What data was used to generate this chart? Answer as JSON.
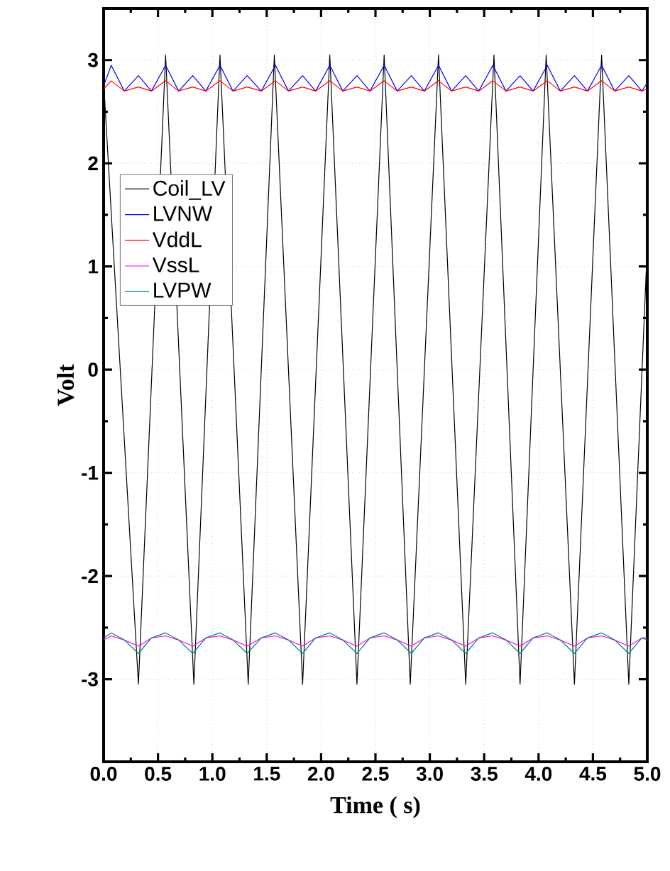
{
  "chart_data": {
    "type": "line",
    "xlabel": "Time (  s)",
    "ylabel": "Volt",
    "xlim": [
      0,
      5
    ],
    "ylim": [
      -3.8,
      3.5
    ],
    "xticks": [
      {
        "value": 0,
        "label": "0.0"
      },
      {
        "value": 0.5,
        "label": "0.5"
      },
      {
        "value": 1,
        "label": "1.0"
      },
      {
        "value": 1.5,
        "label": "1.5"
      },
      {
        "value": 2,
        "label": "2.0"
      },
      {
        "value": 2.5,
        "label": "2.5"
      },
      {
        "value": 3,
        "label": "3.0"
      },
      {
        "value": 3.5,
        "label": "3.5"
      },
      {
        "value": 4,
        "label": "4.0"
      },
      {
        "value": 4.5,
        "label": "4.5"
      },
      {
        "value": 5,
        "label": "5.0"
      }
    ],
    "yticks": [
      -3,
      -2,
      -1,
      0,
      1,
      2,
      3
    ],
    "grid": true,
    "legend": "top left",
    "series": [
      {
        "name": "Coil_LV",
        "color": "#000000",
        "x": [
          0,
          0.32,
          0.57,
          0.83,
          1.07,
          1.33,
          1.57,
          1.83,
          2.08,
          2.33,
          2.58,
          2.82,
          3.08,
          3.33,
          3.59,
          3.83,
          4.07,
          4.33,
          4.58,
          4.83,
          5.0
        ],
        "values": [
          2.8,
          -3.05,
          3.05,
          -3.05,
          3.05,
          -3.05,
          3.05,
          -3.05,
          3.05,
          -3.05,
          3.05,
          -3.05,
          3.05,
          -3.05,
          3.05,
          -3.05,
          3.05,
          -3.05,
          3.05,
          -3.05,
          1.2
        ]
      },
      {
        "name": "LVNW",
        "color": "#0000ff",
        "x": [
          0,
          0.07,
          0.19,
          0.32,
          0.44,
          0.57,
          0.69,
          0.82,
          0.94,
          1.07,
          1.19,
          1.32,
          1.45,
          1.58,
          1.7,
          1.83,
          1.95,
          2.08,
          2.2,
          2.33,
          2.45,
          2.58,
          2.7,
          2.83,
          2.95,
          3.08,
          3.2,
          3.33,
          3.45,
          3.58,
          3.7,
          3.83,
          3.95,
          4.08,
          4.2,
          4.33,
          4.45,
          4.58,
          4.7,
          4.83,
          4.95,
          5.0
        ],
        "values": [
          2.75,
          2.95,
          2.7,
          2.85,
          2.7,
          2.95,
          2.7,
          2.85,
          2.7,
          2.95,
          2.7,
          2.85,
          2.7,
          2.95,
          2.7,
          2.85,
          2.7,
          2.95,
          2.7,
          2.85,
          2.7,
          2.95,
          2.7,
          2.85,
          2.7,
          2.95,
          2.7,
          2.85,
          2.7,
          2.95,
          2.7,
          2.85,
          2.7,
          2.95,
          2.7,
          2.85,
          2.7,
          2.95,
          2.7,
          2.85,
          2.7,
          2.78
        ]
      },
      {
        "name": "VddL",
        "color": "#ff0000",
        "x": [
          0,
          0.07,
          0.19,
          0.32,
          0.44,
          0.57,
          0.69,
          0.82,
          0.94,
          1.07,
          1.19,
          1.32,
          1.45,
          1.58,
          1.7,
          1.83,
          1.95,
          2.08,
          2.2,
          2.33,
          2.45,
          2.58,
          2.7,
          2.83,
          2.95,
          3.08,
          3.2,
          3.33,
          3.45,
          3.58,
          3.7,
          3.83,
          3.95,
          4.08,
          4.2,
          4.33,
          4.45,
          4.58,
          4.7,
          4.83,
          4.95,
          5.0
        ],
        "values": [
          2.72,
          2.8,
          2.7,
          2.74,
          2.7,
          2.8,
          2.7,
          2.74,
          2.7,
          2.8,
          2.7,
          2.74,
          2.7,
          2.8,
          2.7,
          2.74,
          2.7,
          2.8,
          2.7,
          2.74,
          2.7,
          2.8,
          2.7,
          2.74,
          2.7,
          2.8,
          2.7,
          2.74,
          2.7,
          2.8,
          2.7,
          2.74,
          2.7,
          2.8,
          2.7,
          2.74,
          2.7,
          2.8,
          2.7,
          2.74,
          2.7,
          2.72
        ]
      },
      {
        "name": "VssL",
        "color": "#ff00ff",
        "x": [
          0,
          0.07,
          0.19,
          0.32,
          0.44,
          0.57,
          0.69,
          0.82,
          0.94,
          1.07,
          1.19,
          1.32,
          1.45,
          1.58,
          1.7,
          1.83,
          1.95,
          2.08,
          2.2,
          2.33,
          2.45,
          2.58,
          2.7,
          2.83,
          2.95,
          3.08,
          3.2,
          3.33,
          3.45,
          3.58,
          3.7,
          3.83,
          3.95,
          4.08,
          4.2,
          4.33,
          4.45,
          4.58,
          4.7,
          4.83,
          4.95,
          5.0
        ],
        "values": [
          -2.62,
          -2.58,
          -2.62,
          -2.68,
          -2.6,
          -2.58,
          -2.62,
          -2.68,
          -2.6,
          -2.58,
          -2.62,
          -2.68,
          -2.6,
          -2.58,
          -2.62,
          -2.68,
          -2.6,
          -2.58,
          -2.62,
          -2.68,
          -2.6,
          -2.58,
          -2.62,
          -2.68,
          -2.6,
          -2.58,
          -2.62,
          -2.68,
          -2.6,
          -2.58,
          -2.62,
          -2.68,
          -2.6,
          -2.58,
          -2.62,
          -2.68,
          -2.6,
          -2.58,
          -2.62,
          -2.68,
          -2.6,
          -2.62
        ]
      },
      {
        "name": "LVPW",
        "color": "#008080",
        "x": [
          0,
          0.07,
          0.19,
          0.32,
          0.44,
          0.57,
          0.69,
          0.82,
          0.94,
          1.07,
          1.19,
          1.32,
          1.45,
          1.58,
          1.7,
          1.83,
          1.95,
          2.08,
          2.2,
          2.33,
          2.45,
          2.58,
          2.7,
          2.83,
          2.95,
          3.08,
          3.2,
          3.33,
          3.45,
          3.58,
          3.7,
          3.83,
          3.95,
          4.08,
          4.2,
          4.33,
          4.45,
          4.58,
          4.7,
          4.83,
          4.95,
          5.0
        ],
        "values": [
          -2.6,
          -2.55,
          -2.62,
          -2.75,
          -2.6,
          -2.55,
          -2.62,
          -2.75,
          -2.6,
          -2.55,
          -2.62,
          -2.75,
          -2.6,
          -2.55,
          -2.62,
          -2.75,
          -2.6,
          -2.55,
          -2.62,
          -2.75,
          -2.6,
          -2.55,
          -2.62,
          -2.75,
          -2.6,
          -2.55,
          -2.62,
          -2.75,
          -2.6,
          -2.55,
          -2.62,
          -2.75,
          -2.6,
          -2.55,
          -2.62,
          -2.75,
          -2.6,
          -2.55,
          -2.62,
          -2.75,
          -2.6,
          -2.6
        ]
      }
    ]
  }
}
